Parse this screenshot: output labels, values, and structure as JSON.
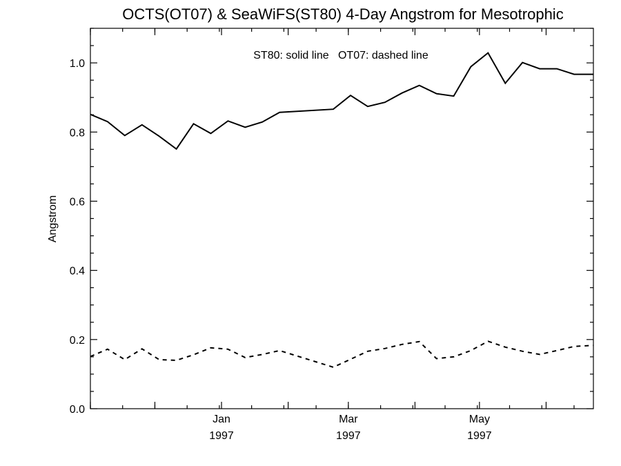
{
  "chart_data": {
    "type": "line",
    "title": "OCTS(OT07) & SeaWiFS(ST80) 4-Day Angstrom for Mesotrophic",
    "ylabel": "Angstrom",
    "xlabel": "",
    "annotation": "ST80: solid line   OT07: dashed line",
    "ylim": [
      0.0,
      1.1
    ],
    "xlim": [
      "1996-11-01",
      "1997-06-23"
    ],
    "grid": false,
    "x_ticks": [
      {
        "date": "1997-01-01",
        "month": "Jan",
        "year": "1997"
      },
      {
        "date": "1997-03-01",
        "month": "Mar",
        "year": "1997"
      },
      {
        "date": "1997-05-01",
        "month": "May",
        "year": "1997"
      }
    ],
    "y_ticks": [
      "0.0",
      "0.2",
      "0.4",
      "0.6",
      "0.8",
      "1.0"
    ],
    "y_tick_values": [
      0.0,
      0.2,
      0.4,
      0.6,
      0.8,
      1.0
    ],
    "series": [
      {
        "name": "ST80",
        "style": "solid",
        "color": "#000000",
        "x": [
          "1996-11-01",
          "1996-11-09",
          "1996-11-17",
          "1996-11-25",
          "1996-12-03",
          "1996-12-11",
          "1996-12-19",
          "1996-12-27",
          "1997-01-04",
          "1997-01-12",
          "1997-01-20",
          "1997-01-28",
          "1997-02-22",
          "1997-03-02",
          "1997-03-10",
          "1997-03-18",
          "1997-03-26",
          "1997-04-03",
          "1997-04-11",
          "1997-04-19",
          "1997-04-27",
          "1997-05-05",
          "1997-05-13",
          "1997-05-21",
          "1997-05-29",
          "1997-06-06",
          "1997-06-14",
          "1997-06-23"
        ],
        "y": [
          0.851,
          0.83,
          0.79,
          0.821,
          0.788,
          0.751,
          0.824,
          0.796,
          0.832,
          0.814,
          0.829,
          0.857,
          0.866,
          0.906,
          0.874,
          0.886,
          0.913,
          0.935,
          0.911,
          0.904,
          0.989,
          1.029,
          0.941,
          1.001,
          0.983,
          0.983,
          0.967,
          0.967
        ]
      },
      {
        "name": "OT07",
        "style": "dashed",
        "color": "#000000",
        "x": [
          "1996-11-01",
          "1996-11-09",
          "1996-11-17",
          "1996-11-25",
          "1996-12-03",
          "1996-12-11",
          "1996-12-19",
          "1996-12-27",
          "1997-01-04",
          "1997-01-12",
          "1997-01-20",
          "1997-01-28",
          "1997-02-22",
          "1997-03-02",
          "1997-03-10",
          "1997-03-18",
          "1997-03-26",
          "1997-04-03",
          "1997-04-11",
          "1997-04-19",
          "1997-04-27",
          "1997-05-05",
          "1997-05-13",
          "1997-05-21",
          "1997-05-29",
          "1997-06-06",
          "1997-06-14",
          "1997-06-23"
        ],
        "y": [
          0.151,
          0.172,
          0.142,
          0.173,
          0.142,
          0.14,
          0.156,
          0.176,
          0.172,
          0.148,
          0.157,
          0.168,
          0.12,
          0.143,
          0.166,
          0.174,
          0.186,
          0.194,
          0.145,
          0.15,
          0.168,
          0.195,
          0.178,
          0.166,
          0.157,
          0.168,
          0.18,
          0.183
        ]
      }
    ]
  }
}
